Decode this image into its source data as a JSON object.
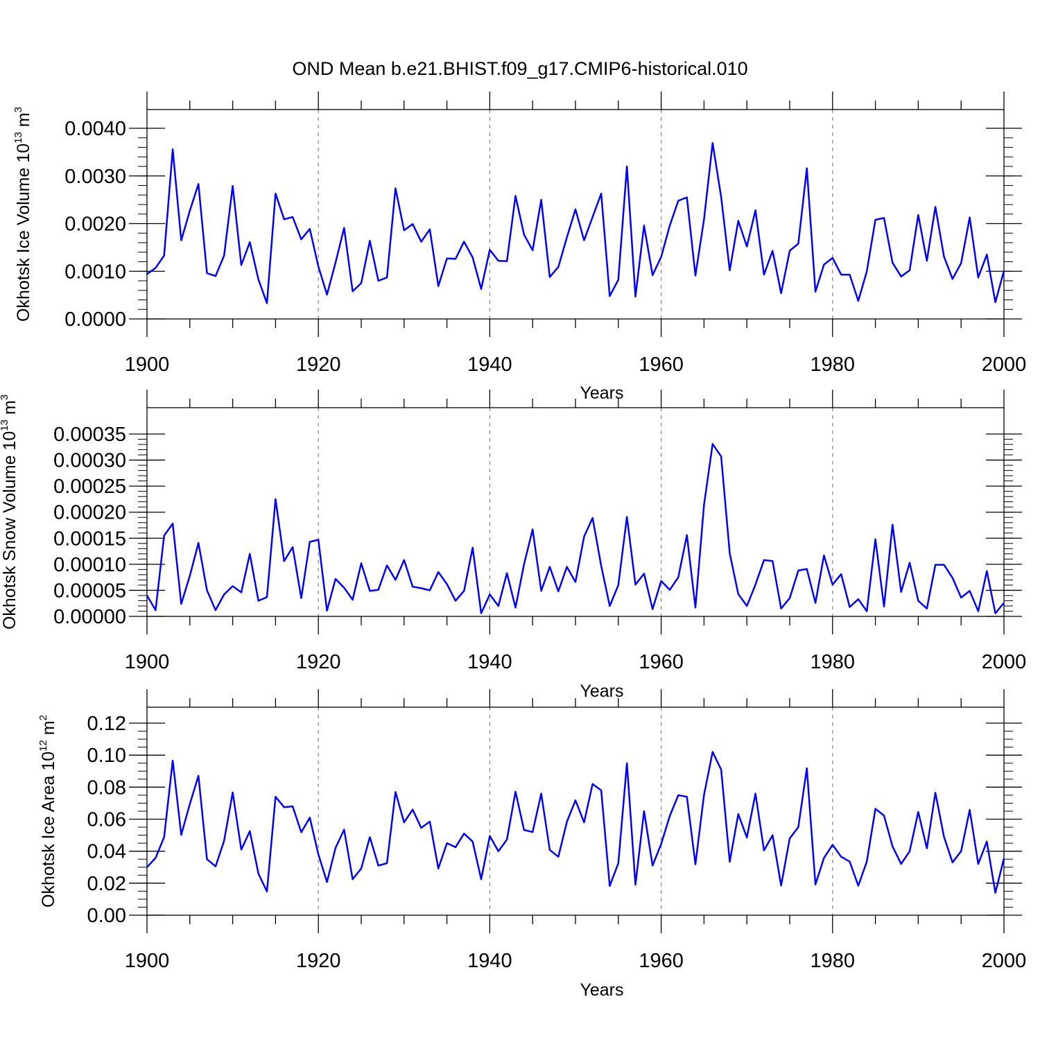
{
  "figure": {
    "title": "OND Mean b.e21.BHIST.f09_g17.CMIP6-historical.010"
  },
  "colors": {
    "line": "#0000ff",
    "axis": "#000000",
    "grid": "#808080"
  },
  "chart_data": [
    {
      "type": "line",
      "panel": "ice-volume",
      "ylabel": "Okhotsk Ice Volume 10",
      "ylabel_exp": "13",
      "ylabel_unit": " m",
      "ylabel_unit_exp": "3",
      "xlabel": "Years",
      "xlim": [
        1900,
        2000
      ],
      "ylim": [
        0,
        0.004
      ],
      "yticks": [
        "0.0000",
        "0.0010",
        "0.0020",
        "0.0030",
        "0.0040"
      ],
      "ytick_values": [
        0,
        0.001,
        0.002,
        0.003,
        0.004
      ],
      "yminor_step": 0.0002,
      "xticks": [
        "1900",
        "1920",
        "1940",
        "1960",
        "1980",
        "2000"
      ],
      "xtick_values": [
        1900,
        1920,
        1940,
        1960,
        1980,
        2000
      ],
      "grid": "vertical dashed at major x ticks",
      "x": [
        1900,
        1901,
        1902,
        1903,
        1904,
        1905,
        1906,
        1907,
        1908,
        1909,
        1910,
        1911,
        1912,
        1913,
        1914,
        1915,
        1916,
        1917,
        1918,
        1919,
        1920,
        1921,
        1922,
        1923,
        1924,
        1925,
        1926,
        1927,
        1928,
        1929,
        1930,
        1931,
        1932,
        1933,
        1934,
        1935,
        1936,
        1937,
        1938,
        1939,
        1940,
        1941,
        1942,
        1943,
        1944,
        1945,
        1946,
        1947,
        1948,
        1949,
        1950,
        1951,
        1952,
        1953,
        1954,
        1955,
        1956,
        1957,
        1958,
        1959,
        1960,
        1961,
        1962,
        1963,
        1964,
        1965,
        1966,
        1967,
        1968,
        1969,
        1970,
        1971,
        1972,
        1973,
        1974,
        1975,
        1976,
        1977,
        1978,
        1979,
        1980,
        1981,
        1982,
        1983,
        1984,
        1985,
        1986,
        1987,
        1988,
        1989,
        1990,
        1991,
        1992,
        1993,
        1994,
        1995,
        1996,
        1997,
        1998,
        1999,
        2000
      ],
      "values": [
        0.00094,
        0.00107,
        0.00133,
        0.00356,
        0.00165,
        0.00227,
        0.00283,
        0.00096,
        0.0009,
        0.00133,
        0.00279,
        0.00113,
        0.00161,
        0.00083,
        0.00033,
        0.00263,
        0.00209,
        0.00214,
        0.00167,
        0.00189,
        0.0011,
        0.00051,
        0.00118,
        0.00191,
        0.00058,
        0.00075,
        0.00164,
        0.0008,
        0.00087,
        0.00274,
        0.00186,
        0.00199,
        0.00162,
        0.00188,
        0.00069,
        0.00127,
        0.00126,
        0.00162,
        0.00129,
        0.00063,
        0.00145,
        0.00122,
        0.00121,
        0.00258,
        0.00177,
        0.00144,
        0.0025,
        0.00088,
        0.00109,
        0.00171,
        0.0023,
        0.00165,
        0.00214,
        0.00263,
        0.00048,
        0.00082,
        0.0032,
        0.00047,
        0.00196,
        0.00092,
        0.0013,
        0.00196,
        0.00248,
        0.00255,
        0.00091,
        0.00209,
        0.00369,
        0.00256,
        0.00102,
        0.00206,
        0.00152,
        0.00228,
        0.00093,
        0.00143,
        0.00054,
        0.00143,
        0.00158,
        0.00316,
        0.00057,
        0.00114,
        0.00128,
        0.00093,
        0.00093,
        0.00038,
        0.001,
        0.00208,
        0.00212,
        0.00118,
        0.00089,
        0.00102,
        0.00218,
        0.00122,
        0.00235,
        0.00131,
        0.00084,
        0.00117,
        0.00213,
        0.00087,
        0.00135,
        0.00035,
        0.00101
      ]
    },
    {
      "type": "line",
      "panel": "snow-volume",
      "ylabel": "Okhotsk Snow Volume 10",
      "ylabel_exp": "13",
      "ylabel_unit": " m",
      "ylabel_unit_exp": "3",
      "xlabel": "Years",
      "xlim": [
        1900,
        2000
      ],
      "ylim": [
        0,
        0.00035
      ],
      "yticks": [
        "0.00000",
        "0.00005",
        "0.00010",
        "0.00015",
        "0.00020",
        "0.00025",
        "0.00030",
        "0.00035"
      ],
      "ytick_values": [
        0,
        5e-05,
        0.0001,
        0.00015,
        0.0002,
        0.00025,
        0.0003,
        0.00035
      ],
      "yminor_step": 1e-05,
      "xticks": [
        "1900",
        "1920",
        "1940",
        "1960",
        "1980",
        "2000"
      ],
      "xtick_values": [
        1900,
        1920,
        1940,
        1960,
        1980,
        2000
      ],
      "grid": "vertical dashed at major x ticks",
      "x": [
        1900,
        1901,
        1902,
        1903,
        1904,
        1905,
        1906,
        1907,
        1908,
        1909,
        1910,
        1911,
        1912,
        1913,
        1914,
        1915,
        1916,
        1917,
        1918,
        1919,
        1920,
        1921,
        1922,
        1923,
        1924,
        1925,
        1926,
        1927,
        1928,
        1929,
        1930,
        1931,
        1932,
        1933,
        1934,
        1935,
        1936,
        1937,
        1938,
        1939,
        1940,
        1941,
        1942,
        1943,
        1944,
        1945,
        1946,
        1947,
        1948,
        1949,
        1950,
        1951,
        1952,
        1953,
        1954,
        1955,
        1956,
        1957,
        1958,
        1959,
        1960,
        1961,
        1962,
        1963,
        1964,
        1965,
        1966,
        1967,
        1968,
        1969,
        1970,
        1971,
        1972,
        1973,
        1974,
        1975,
        1976,
        1977,
        1978,
        1979,
        1980,
        1981,
        1982,
        1983,
        1984,
        1985,
        1986,
        1987,
        1988,
        1989,
        1990,
        1991,
        1992,
        1993,
        1994,
        1995,
        1996,
        1997,
        1998,
        1999,
        2000
      ],
      "values": [
        4e-05,
        1.2e-05,
        0.000155,
        0.000178,
        2.4e-05,
        7.8e-05,
        0.000141,
        5e-05,
        1.2e-05,
        4.2e-05,
        5.8e-05,
        4.6e-05,
        0.00012,
        3e-05,
        3.7e-05,
        0.000225,
        0.000106,
        0.000133,
        3.5e-05,
        0.000143,
        0.000147,
        1.1e-05,
        7.2e-05,
        5.5e-05,
        3.2e-05,
        0.000102,
        4.9e-05,
        5.1e-05,
        9.8e-05,
        7e-05,
        0.000108,
        5.7e-05,
        5.4e-05,
        5e-05,
        8.5e-05,
        6.2e-05,
        3e-05,
        4.9e-05,
        0.000132,
        6e-06,
        4.2e-05,
        2e-05,
        8.3e-05,
        1.7e-05,
        0.0001,
        0.000167,
        4.9e-05,
        9.5e-05,
        4.8e-05,
        9.5e-05,
        6.6e-05,
        0.000153,
        0.000189,
        9.7e-05,
        2e-05,
        6e-05,
        0.000191,
        6.1e-05,
        8.2e-05,
        1.4e-05,
        6.8e-05,
        5.1e-05,
        7.5e-05,
        0.000156,
        1.7e-05,
        0.000214,
        0.000331,
        0.000307,
        0.000121,
        4.3e-05,
        2e-05,
        6.1e-05,
        0.000108,
        0.000106,
        1.5e-05,
        3.5e-05,
        8.8e-05,
        9.1e-05,
        2.6e-05,
        0.000117,
        6.1e-05,
        8.1e-05,
        1.8e-05,
        3.3e-05,
        1e-05,
        0.000148,
        1.9e-05,
        0.000176,
        4.7e-05,
        0.000103,
        3e-05,
        1.5e-05,
        9.9e-05,
        9.9e-05,
        7.4e-05,
        3.6e-05,
        4.9e-05,
        1e-05,
        8.7e-05,
        6e-06,
        2.6e-05
      ]
    },
    {
      "type": "line",
      "panel": "ice-area",
      "ylabel": "Okhotsk Ice Area 10",
      "ylabel_exp": "12",
      "ylabel_unit": " m",
      "ylabel_unit_exp": "2",
      "xlabel": "Years",
      "xlim": [
        1900,
        2000
      ],
      "ylim": [
        0,
        0.12
      ],
      "yticks": [
        "0.00",
        "0.02",
        "0.04",
        "0.06",
        "0.08",
        "0.10",
        "0.12"
      ],
      "ytick_values": [
        0,
        0.02,
        0.04,
        0.06,
        0.08,
        0.1,
        0.12
      ],
      "yminor_step": 0.005,
      "xticks": [
        "1900",
        "1920",
        "1940",
        "1960",
        "1980",
        "2000"
      ],
      "xtick_values": [
        1900,
        1920,
        1940,
        1960,
        1980,
        2000
      ],
      "grid": "vertical dashed at major x ticks",
      "x": [
        1900,
        1901,
        1902,
        1903,
        1904,
        1905,
        1906,
        1907,
        1908,
        1909,
        1910,
        1911,
        1912,
        1913,
        1914,
        1915,
        1916,
        1917,
        1918,
        1919,
        1920,
        1921,
        1922,
        1923,
        1924,
        1925,
        1926,
        1927,
        1928,
        1929,
        1930,
        1931,
        1932,
        1933,
        1934,
        1935,
        1936,
        1937,
        1938,
        1939,
        1940,
        1941,
        1942,
        1943,
        1944,
        1945,
        1946,
        1947,
        1948,
        1949,
        1950,
        1951,
        1952,
        1953,
        1954,
        1955,
        1956,
        1957,
        1958,
        1959,
        1960,
        1961,
        1962,
        1963,
        1964,
        1965,
        1966,
        1967,
        1968,
        1969,
        1970,
        1971,
        1972,
        1973,
        1974,
        1975,
        1976,
        1977,
        1978,
        1979,
        1980,
        1981,
        1982,
        1983,
        1984,
        1985,
        1986,
        1987,
        1988,
        1989,
        1990,
        1991,
        1992,
        1993,
        1994,
        1995,
        1996,
        1997,
        1998,
        1999,
        2000
      ],
      "values": [
        0.03,
        0.0358,
        0.0488,
        0.0966,
        0.0502,
        0.0695,
        0.0871,
        0.035,
        0.0305,
        0.0465,
        0.0767,
        0.041,
        0.0525,
        0.026,
        0.0148,
        0.074,
        0.0675,
        0.068,
        0.0518,
        0.061,
        0.038,
        0.0207,
        0.042,
        0.0535,
        0.0225,
        0.0292,
        0.0488,
        0.031,
        0.0325,
        0.077,
        0.058,
        0.066,
        0.0546,
        0.0585,
        0.0292,
        0.045,
        0.0425,
        0.051,
        0.046,
        0.0225,
        0.0495,
        0.04,
        0.0472,
        0.0772,
        0.0533,
        0.052,
        0.076,
        0.0408,
        0.0365,
        0.0583,
        0.0718,
        0.058,
        0.082,
        0.078,
        0.0183,
        0.0325,
        0.095,
        0.019,
        0.065,
        0.031,
        0.0445,
        0.062,
        0.075,
        0.074,
        0.0318,
        0.0752,
        0.102,
        0.091,
        0.0334,
        0.0632,
        0.0485,
        0.076,
        0.0405,
        0.05,
        0.0185,
        0.048,
        0.055,
        0.0918,
        0.0192,
        0.0358,
        0.044,
        0.0365,
        0.0335,
        0.0184,
        0.0335,
        0.0665,
        0.0622,
        0.043,
        0.032,
        0.04,
        0.0645,
        0.0418,
        0.0765,
        0.049,
        0.033,
        0.04,
        0.0658,
        0.032,
        0.046,
        0.014,
        0.0355
      ]
    }
  ]
}
